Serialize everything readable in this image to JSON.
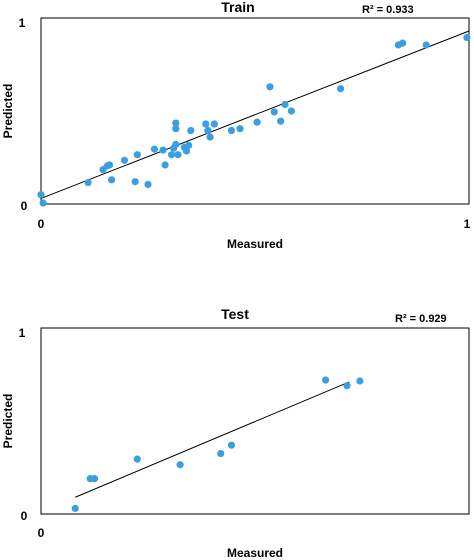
{
  "chart_data": [
    {
      "type": "scatter",
      "title": "Train",
      "annotation": "R² = 0.933",
      "xlabel": "Measured",
      "ylabel": "Predicted",
      "xlim": [
        0,
        1
      ],
      "ylim": [
        0,
        1
      ],
      "xticks": [
        "0",
        "1"
      ],
      "yticks": [
        "0",
        "1"
      ],
      "grid": false,
      "marker_color": "#3a9fe0",
      "fit_line": {
        "x": [
          0,
          1
        ],
        "y": [
          0.03,
          0.93
        ]
      },
      "points": [
        {
          "x": 0.0,
          "y": 0.05
        },
        {
          "x": 0.005,
          "y": 0.005
        },
        {
          "x": 0.11,
          "y": 0.115
        },
        {
          "x": 0.145,
          "y": 0.185
        },
        {
          "x": 0.155,
          "y": 0.205
        },
        {
          "x": 0.16,
          "y": 0.21
        },
        {
          "x": 0.165,
          "y": 0.13
        },
        {
          "x": 0.195,
          "y": 0.235
        },
        {
          "x": 0.22,
          "y": 0.12
        },
        {
          "x": 0.225,
          "y": 0.265
        },
        {
          "x": 0.25,
          "y": 0.105
        },
        {
          "x": 0.265,
          "y": 0.295
        },
        {
          "x": 0.285,
          "y": 0.29
        },
        {
          "x": 0.29,
          "y": 0.21
        },
        {
          "x": 0.305,
          "y": 0.265
        },
        {
          "x": 0.31,
          "y": 0.3
        },
        {
          "x": 0.315,
          "y": 0.405
        },
        {
          "x": 0.315,
          "y": 0.435
        },
        {
          "x": 0.315,
          "y": 0.32
        },
        {
          "x": 0.32,
          "y": 0.265
        },
        {
          "x": 0.335,
          "y": 0.305
        },
        {
          "x": 0.34,
          "y": 0.285
        },
        {
          "x": 0.345,
          "y": 0.315
        },
        {
          "x": 0.35,
          "y": 0.395
        },
        {
          "x": 0.385,
          "y": 0.43
        },
        {
          "x": 0.39,
          "y": 0.395
        },
        {
          "x": 0.395,
          "y": 0.36
        },
        {
          "x": 0.405,
          "y": 0.43
        },
        {
          "x": 0.445,
          "y": 0.395
        },
        {
          "x": 0.465,
          "y": 0.405
        },
        {
          "x": 0.505,
          "y": 0.44
        },
        {
          "x": 0.535,
          "y": 0.63
        },
        {
          "x": 0.545,
          "y": 0.495
        },
        {
          "x": 0.56,
          "y": 0.445
        },
        {
          "x": 0.57,
          "y": 0.535
        },
        {
          "x": 0.585,
          "y": 0.5
        },
        {
          "x": 0.7,
          "y": 0.62
        },
        {
          "x": 0.835,
          "y": 0.855
        },
        {
          "x": 0.845,
          "y": 0.865
        },
        {
          "x": 0.9,
          "y": 0.855
        },
        {
          "x": 0.995,
          "y": 0.895
        }
      ]
    },
    {
      "type": "scatter",
      "title": "Test",
      "annotation": "R² = 0.929",
      "xlabel": "Measured",
      "ylabel": "Predicted",
      "xlim": [
        0,
        1
      ],
      "ylim": [
        0,
        1
      ],
      "xticks": [
        "0",
        ""
      ],
      "yticks": [
        "0",
        "1"
      ],
      "grid": false,
      "marker_color": "#3a9fe0",
      "fit_line": {
        "x": [
          0.08,
          0.72
        ],
        "y": [
          0.09,
          0.71
        ]
      },
      "points": [
        {
          "x": 0.08,
          "y": 0.03
        },
        {
          "x": 0.115,
          "y": 0.19
        },
        {
          "x": 0.125,
          "y": 0.19
        },
        {
          "x": 0.225,
          "y": 0.295
        },
        {
          "x": 0.325,
          "y": 0.265
        },
        {
          "x": 0.42,
          "y": 0.325
        },
        {
          "x": 0.445,
          "y": 0.37
        },
        {
          "x": 0.665,
          "y": 0.72
        },
        {
          "x": 0.715,
          "y": 0.69
        },
        {
          "x": 0.745,
          "y": 0.715
        }
      ]
    }
  ]
}
